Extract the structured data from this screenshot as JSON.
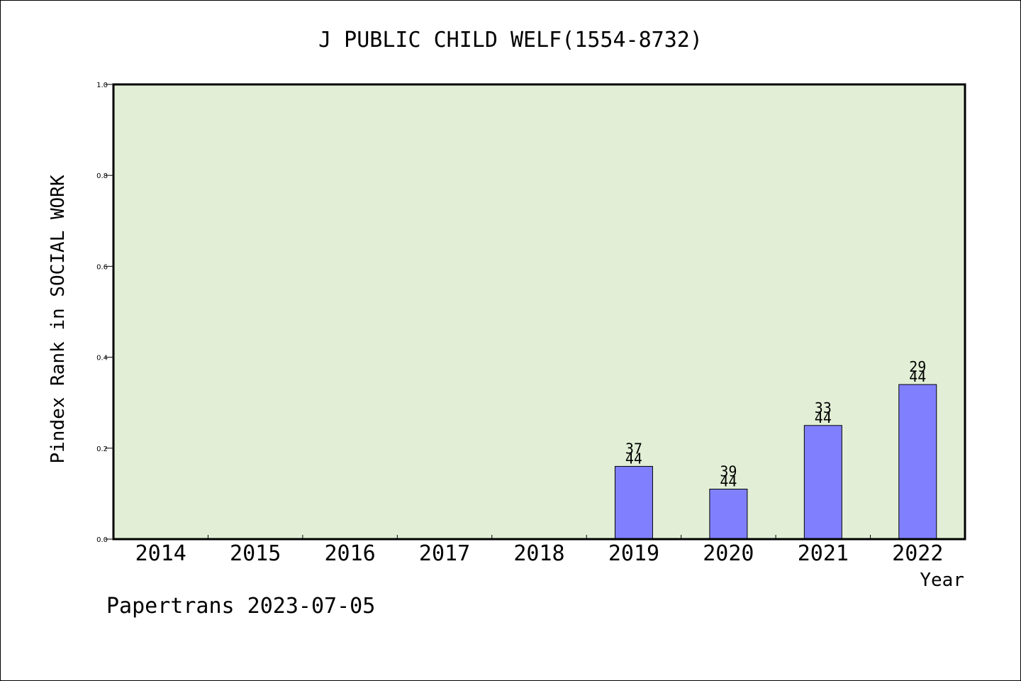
{
  "chart_data": {
    "type": "bar",
    "title": "J PUBLIC CHILD WELF(1554-8732)",
    "xlabel": "Year",
    "ylabel": "Pindex Rank in SOCIAL WORK",
    "footer": "Papertrans 2023-07-05",
    "categories": [
      "2014",
      "2015",
      "2016",
      "2017",
      "2018",
      "2019",
      "2020",
      "2021",
      "2022"
    ],
    "values": [
      null,
      null,
      null,
      null,
      null,
      0.16,
      0.11,
      0.25,
      0.34
    ],
    "bar_labels": [
      null,
      null,
      null,
      null,
      null,
      {
        "rank": "37",
        "total": "44"
      },
      {
        "rank": "39",
        "total": "44"
      },
      {
        "rank": "33",
        "total": "44"
      },
      {
        "rank": "29",
        "total": "44"
      }
    ],
    "ylim": [
      0,
      1.0
    ],
    "yticks": [
      "0.0",
      "0.2",
      "0.4",
      "0.6",
      "0.8",
      "1.0"
    ],
    "grid": false,
    "colors": {
      "plot_background": "#e2efd6",
      "bar_fill": "#8080ff",
      "bar_stroke": "#000000",
      "axis": "#000000"
    }
  }
}
